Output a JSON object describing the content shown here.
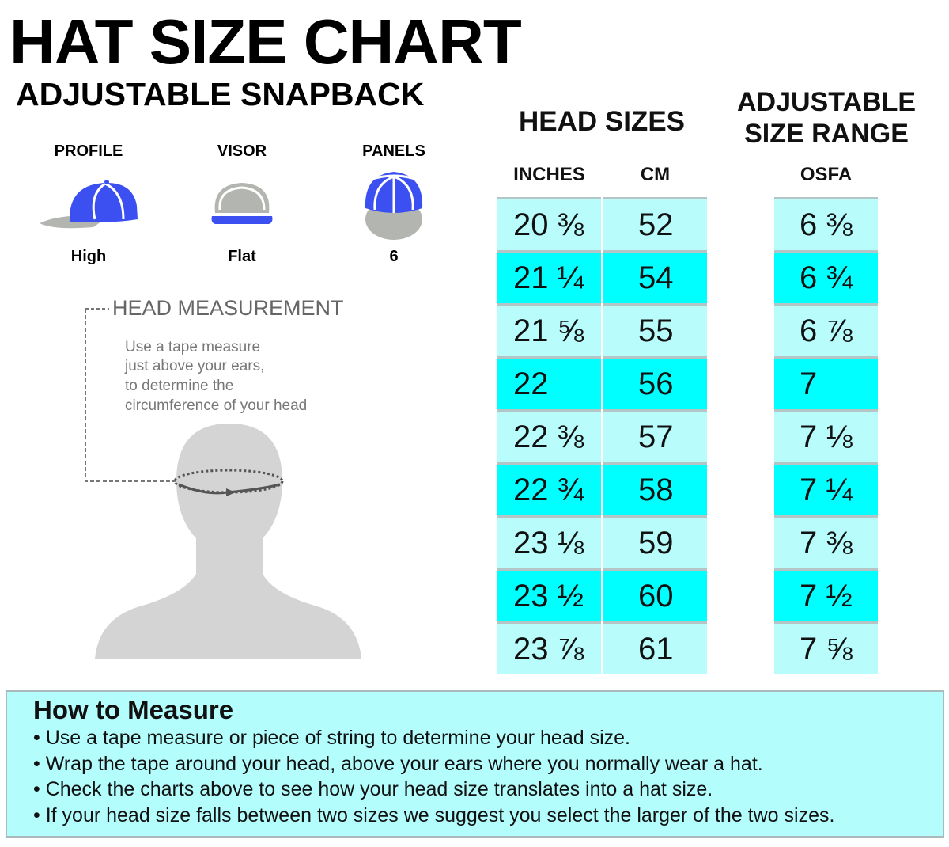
{
  "title": "HAT SIZE CHART",
  "subtitle": "ADJUSTABLE SNAPBACK",
  "specs": [
    {
      "label": "PROFILE",
      "value": "High",
      "icon": "cap-side-icon"
    },
    {
      "label": "VISOR",
      "value": "Flat",
      "icon": "cap-front-icon"
    },
    {
      "label": "PANELS",
      "value": "6",
      "icon": "cap-top-icon"
    }
  ],
  "colors": {
    "cap_blue": "#3c4ff0",
    "cap_gray": "#b3b6b0",
    "row_light": "#b8fcfc",
    "row_bright": "#00ffff",
    "silhouette": "#d4d4d4"
  },
  "head_measurement": {
    "title": "HEAD MEASUREMENT",
    "lines": [
      "Use a tape measure",
      "just above your ears,",
      "to determine the",
      "circumference of your head"
    ]
  },
  "table": {
    "head_sizes_title": "HEAD SIZES",
    "range_title_1": "ADJUSTABLE",
    "range_title_2": "SIZE RANGE",
    "col_inches": "INCHES",
    "col_cm": "CM",
    "col_osfa": "OSFA",
    "rows": [
      {
        "inches": "20 ⅜",
        "cm": "52",
        "osfa": "6 ⅜"
      },
      {
        "inches": "21 ¼",
        "cm": "54",
        "osfa": "6 ¾"
      },
      {
        "inches": "21 ⅝",
        "cm": "55",
        "osfa": "6 ⅞"
      },
      {
        "inches": "22",
        "cm": "56",
        "osfa": "7"
      },
      {
        "inches": "22 ⅜",
        "cm": "57",
        "osfa": "7 ⅛"
      },
      {
        "inches": "22 ¾",
        "cm": "58",
        "osfa": "7 ¼"
      },
      {
        "inches": "23 ⅛",
        "cm": "59",
        "osfa": "7 ⅜"
      },
      {
        "inches": "23 ½",
        "cm": "60",
        "osfa": "7 ½"
      },
      {
        "inches": "23 ⅞",
        "cm": "61",
        "osfa": "7 ⅝"
      }
    ]
  },
  "how_to": {
    "title": "How to Measure",
    "bullets": [
      "• Use a tape measure or piece of string to determine your head size.",
      "• Wrap the tape around your head, above your ears where you normally wear a hat.",
      "• Check the charts above to see how your head size translates into a hat size.",
      "• If your head size falls between two sizes we suggest you select the larger of the two sizes."
    ]
  }
}
